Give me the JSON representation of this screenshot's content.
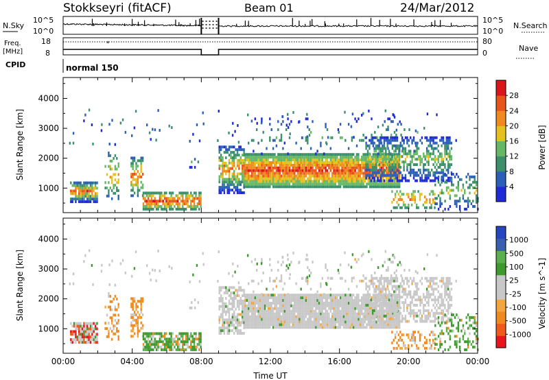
{
  "header": {
    "title": "Stokkseyri (fitACF)",
    "beam": "Beam 01",
    "date": "24/Mar/2012"
  },
  "status_panels": {
    "nsky_label": "N.Sky",
    "nsky_ticks": [
      "10^5",
      "10^0"
    ],
    "nsearch_label": "N.Search",
    "nsearch_ticks": [
      "10^5",
      "10^0"
    ],
    "freq_label": "Freq.",
    "freq_unit": "[MHz]",
    "freq_ticks": [
      "18",
      "8"
    ],
    "nave_label": "Nave",
    "nave_ticks": [
      "80",
      "0"
    ],
    "cpid_label": "CPID",
    "cpid_value": "normal 150"
  },
  "colors": {
    "power_scale": [
      "#1f2bd6",
      "#2b5fb8",
      "#3b8f6a",
      "#66b866",
      "#e6c020",
      "#f08a1e",
      "#e8541c",
      "#d8161c"
    ],
    "velocity_scale": [
      "#e8161c",
      "#f05a1c",
      "#f08a1e",
      "#f3a640",
      "#c8c8c8",
      "#c8c8c8",
      "#3e9a2e",
      "#5ab04c",
      "#3a5fb0",
      "#2646c0"
    ],
    "gray_scatter": "#c8c8c8"
  },
  "chart_data": [
    {
      "type": "heatmap",
      "name": "power",
      "ylabel": "Slant Range [km]",
      "colorbar_label": "Power [dB]",
      "colorbar_ticks": [
        "28",
        "24",
        "20",
        "16",
        "12",
        "8",
        "4"
      ],
      "x_ticks": [
        "00:00",
        "04:00",
        "08:00",
        "12:00",
        "16:00",
        "20:00",
        "00:00"
      ],
      "y_ticks": [
        "4000",
        "3000",
        "2000",
        "1000"
      ],
      "xlim_hours": [
        0,
        24
      ],
      "ylim_km": [
        180,
        4700
      ]
    },
    {
      "type": "heatmap",
      "name": "velocity",
      "ylabel": "Slant Range [km]",
      "xlabel": "Time UT",
      "colorbar_label": "Velocity [m s^-1]",
      "colorbar_ticks": [
        "1000",
        "500",
        "100",
        "25",
        "-25",
        "-100",
        "-500",
        "-1000"
      ],
      "x_ticks": [
        "00:00",
        "04:00",
        "08:00",
        "12:00",
        "16:00",
        "20:00",
        "00:00"
      ],
      "y_ticks": [
        "4000",
        "3000",
        "2000",
        "1000"
      ],
      "xlim_hours": [
        0,
        24
      ],
      "ylim_km": [
        180,
        4700
      ]
    }
  ]
}
